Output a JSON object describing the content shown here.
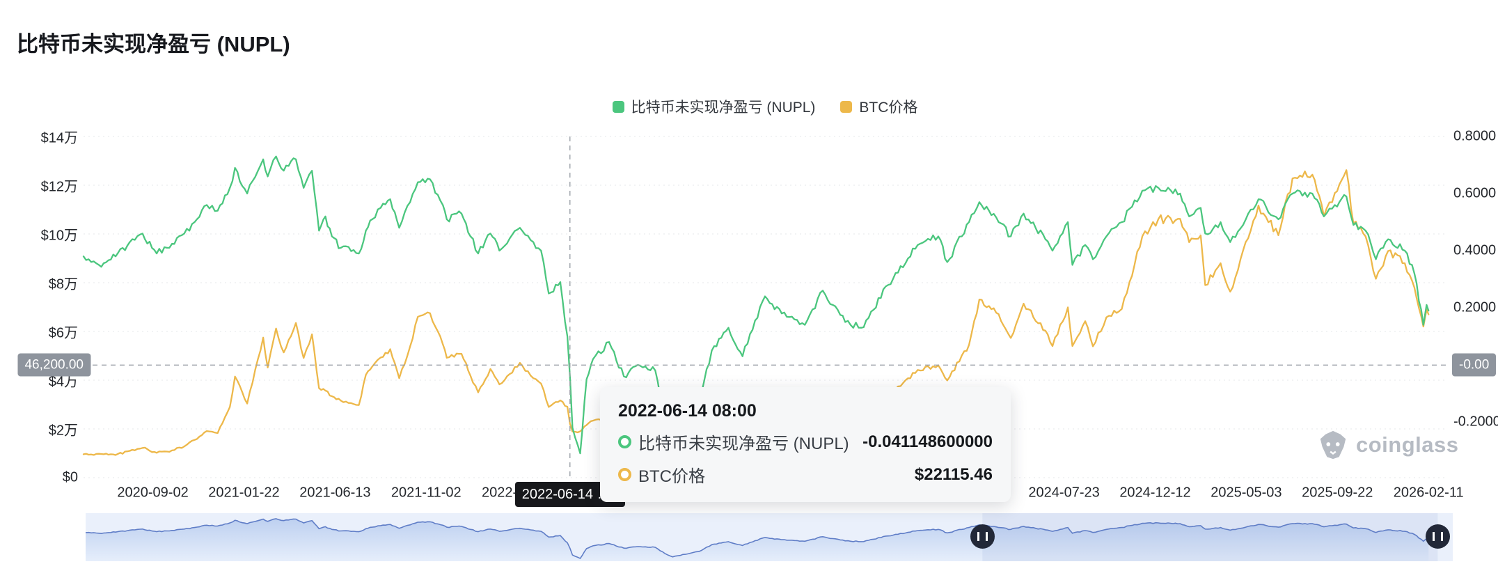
{
  "title": "比特币未实现净盈亏 (NUPL)",
  "legend": {
    "items": [
      {
        "label": "比特币未实现净盈亏 (NUPL)",
        "color": "#4bc67e"
      },
      {
        "label": "BTC价格",
        "color": "#edb84a"
      }
    ]
  },
  "watermark": {
    "text": "coinglass"
  },
  "crosshair": {
    "date": "2022-06-14",
    "left_label": "46,200.00",
    "left_value": 46200,
    "right_label": "-0.00",
    "date_label": "2022-06-14 08:00"
  },
  "tooltip": {
    "title": "2022-06-14 08:00",
    "rows": [
      {
        "label": "比特币未实现净盈亏 (NUPL)",
        "value": "-0.041148600000",
        "color": "#4bc67e"
      },
      {
        "label": "BTC价格",
        "value": "$22115.46",
        "color": "#edb84a"
      }
    ]
  },
  "chart_data": {
    "type": "line",
    "title": "比特币未实现净盈亏 (NUPL)",
    "legend_position": "top-center",
    "grid": "horizontal-dotted",
    "x_axis": {
      "min": "2020-05-17",
      "max": "2026-03-11",
      "ticks": [
        "2020-09-02",
        "2021-01-22",
        "2021-06-13",
        "2021-11-02",
        "2022-03-24",
        "2024-07-23",
        "2024-12-12",
        "2025-05-03",
        "2025-09-22",
        "2026-02-11"
      ]
    },
    "y_axis_left": {
      "min": 0,
      "max": 140000,
      "ticks": [
        {
          "value": 140000,
          "label": "$14万"
        },
        {
          "value": 120000,
          "label": "$12万"
        },
        {
          "value": 100000,
          "label": "$10万"
        },
        {
          "value": 80000,
          "label": "$8万"
        },
        {
          "value": 60000,
          "label": "$6万"
        },
        {
          "value": 40000,
          "label": "$4万"
        },
        {
          "value": 20000,
          "label": "$2万"
        },
        {
          "value": 0,
          "label": "$0"
        }
      ]
    },
    "y_axis_right": {
      "min": -0.3951,
      "max": 0.8,
      "ticks": [
        {
          "value": 0.8,
          "label": "0.8000"
        },
        {
          "value": 0.6,
          "label": "0.6000"
        },
        {
          "value": 0.4,
          "label": "0.4000"
        },
        {
          "value": 0.2,
          "label": "0.2000"
        },
        {
          "value": -0.2,
          "label": "-0.2000"
        }
      ]
    },
    "series": [
      {
        "name": "比特币未实现净盈亏 (NUPL)",
        "axis": "right",
        "color": "#4bc67e",
        "points": [
          [
            "2020-05-17",
            0.38
          ],
          [
            "2020-06-10",
            0.35
          ],
          [
            "2020-07-06",
            0.38
          ],
          [
            "2020-07-28",
            0.43
          ],
          [
            "2020-08-17",
            0.46
          ],
          [
            "2020-09-08",
            0.39
          ],
          [
            "2020-09-24",
            0.41
          ],
          [
            "2020-10-21",
            0.46
          ],
          [
            "2020-11-06",
            0.5
          ],
          [
            "2020-11-25",
            0.56
          ],
          [
            "2020-12-12",
            0.54
          ],
          [
            "2020-12-31",
            0.62
          ],
          [
            "2021-01-08",
            0.69
          ],
          [
            "2021-01-27",
            0.6
          ],
          [
            "2021-02-21",
            0.72
          ],
          [
            "2021-02-28",
            0.66
          ],
          [
            "2021-03-13",
            0.73
          ],
          [
            "2021-03-25",
            0.68
          ],
          [
            "2021-04-13",
            0.72
          ],
          [
            "2021-04-25",
            0.62
          ],
          [
            "2021-05-08",
            0.68
          ],
          [
            "2021-05-19",
            0.47
          ],
          [
            "2021-05-29",
            0.52
          ],
          [
            "2021-06-08",
            0.45
          ],
          [
            "2021-06-22",
            0.41
          ],
          [
            "2021-07-20",
            0.39
          ],
          [
            "2021-07-31",
            0.47
          ],
          [
            "2021-08-10",
            0.51
          ],
          [
            "2021-08-23",
            0.55
          ],
          [
            "2021-09-07",
            0.58
          ],
          [
            "2021-09-21",
            0.48
          ],
          [
            "2021-10-08",
            0.57
          ],
          [
            "2021-10-20",
            0.64
          ],
          [
            "2021-11-08",
            0.65
          ],
          [
            "2021-11-28",
            0.56
          ],
          [
            "2021-12-04",
            0.51
          ],
          [
            "2021-12-27",
            0.53
          ],
          [
            "2022-01-10",
            0.45
          ],
          [
            "2022-01-22",
            0.39
          ],
          [
            "2022-02-10",
            0.46
          ],
          [
            "2022-02-24",
            0.4
          ],
          [
            "2022-03-28",
            0.48
          ],
          [
            "2022-04-18",
            0.43
          ],
          [
            "2022-04-30",
            0.4
          ],
          [
            "2022-05-12",
            0.25
          ],
          [
            "2022-05-30",
            0.29
          ],
          [
            "2022-06-10",
            0.1
          ],
          [
            "2022-06-14",
            -0.0411486
          ],
          [
            "2022-06-18",
            -0.22
          ],
          [
            "2022-06-30",
            -0.31
          ],
          [
            "2022-07-10",
            -0.05
          ],
          [
            "2022-07-20",
            0.02
          ],
          [
            "2022-08-14",
            0.08
          ],
          [
            "2022-09-06",
            -0.04
          ],
          [
            "2022-09-28",
            0.0
          ],
          [
            "2022-10-25",
            -0.02
          ],
          [
            "2022-11-09",
            -0.18
          ],
          [
            "2022-11-21",
            -0.27
          ],
          [
            "2022-12-15",
            -0.19
          ],
          [
            "2023-01-01",
            -0.13
          ],
          [
            "2023-01-21",
            0.05
          ],
          [
            "2023-02-16",
            0.13
          ],
          [
            "2023-03-10",
            0.03
          ],
          [
            "2023-04-14",
            0.24
          ],
          [
            "2023-05-10",
            0.18
          ],
          [
            "2023-06-15",
            0.14
          ],
          [
            "2023-07-13",
            0.26
          ],
          [
            "2023-08-17",
            0.15
          ],
          [
            "2023-09-11",
            0.13
          ],
          [
            "2023-10-23",
            0.28
          ],
          [
            "2023-12-08",
            0.42
          ],
          [
            "2024-01-09",
            0.45
          ],
          [
            "2024-01-23",
            0.36
          ],
          [
            "2024-02-26",
            0.5
          ],
          [
            "2024-03-13",
            0.57
          ],
          [
            "2024-04-12",
            0.5
          ],
          [
            "2024-05-01",
            0.45
          ],
          [
            "2024-05-21",
            0.53
          ],
          [
            "2024-06-24",
            0.44
          ],
          [
            "2024-07-05",
            0.4
          ],
          [
            "2024-07-29",
            0.5
          ],
          [
            "2024-08-05",
            0.35
          ],
          [
            "2024-08-25",
            0.42
          ],
          [
            "2024-09-06",
            0.37
          ],
          [
            "2024-09-27",
            0.45
          ],
          [
            "2024-10-21",
            0.5
          ],
          [
            "2024-11-22",
            0.61
          ],
          [
            "2024-12-17",
            0.62
          ],
          [
            "2025-01-20",
            0.6
          ],
          [
            "2025-02-03",
            0.52
          ],
          [
            "2025-02-21",
            0.55
          ],
          [
            "2025-02-28",
            0.46
          ],
          [
            "2025-03-24",
            0.5
          ],
          [
            "2025-04-08",
            0.43
          ],
          [
            "2025-05-22",
            0.58
          ],
          [
            "2025-06-22",
            0.51
          ],
          [
            "2025-07-14",
            0.6
          ],
          [
            "2025-08-14",
            0.6
          ],
          [
            "2025-09-01",
            0.52
          ],
          [
            "2025-09-18",
            0.56
          ],
          [
            "2025-10-06",
            0.59
          ],
          [
            "2025-10-17",
            0.49
          ],
          [
            "2025-11-05",
            0.47
          ],
          [
            "2025-11-21",
            0.37
          ],
          [
            "2025-12-10",
            0.44
          ],
          [
            "2026-01-05",
            0.4
          ],
          [
            "2026-01-20",
            0.32
          ],
          [
            "2026-02-03",
            0.14
          ],
          [
            "2026-02-08",
            0.21
          ],
          [
            "2026-02-11",
            0.19
          ]
        ]
      },
      {
        "name": "BTC价格",
        "axis": "left",
        "color": "#edb84a",
        "points": [
          [
            "2020-05-17",
            9600
          ],
          [
            "2020-06-10",
            9800
          ],
          [
            "2020-07-06",
            9300
          ],
          [
            "2020-07-28",
            11000
          ],
          [
            "2020-08-17",
            12200
          ],
          [
            "2020-09-08",
            10200
          ],
          [
            "2020-09-24",
            10700
          ],
          [
            "2020-10-21",
            12800
          ],
          [
            "2020-11-06",
            15500
          ],
          [
            "2020-11-25",
            19100
          ],
          [
            "2020-12-12",
            18300
          ],
          [
            "2020-12-31",
            29000
          ],
          [
            "2021-01-08",
            41500
          ],
          [
            "2021-01-27",
            30400
          ],
          [
            "2021-02-21",
            57500
          ],
          [
            "2021-02-28",
            45200
          ],
          [
            "2021-03-13",
            61200
          ],
          [
            "2021-03-25",
            51400
          ],
          [
            "2021-04-13",
            63500
          ],
          [
            "2021-04-25",
            49100
          ],
          [
            "2021-05-08",
            58800
          ],
          [
            "2021-05-19",
            36700
          ],
          [
            "2021-05-29",
            35700
          ],
          [
            "2021-06-08",
            33400
          ],
          [
            "2021-06-22",
            31600
          ],
          [
            "2021-07-20",
            29800
          ],
          [
            "2021-07-31",
            42200
          ],
          [
            "2021-08-10",
            45600
          ],
          [
            "2021-08-23",
            49300
          ],
          [
            "2021-09-07",
            52700
          ],
          [
            "2021-09-21",
            40800
          ],
          [
            "2021-10-08",
            53900
          ],
          [
            "2021-10-20",
            66000
          ],
          [
            "2021-11-08",
            67500
          ],
          [
            "2021-11-28",
            54700
          ],
          [
            "2021-12-04",
            49200
          ],
          [
            "2021-12-27",
            50800
          ],
          [
            "2022-01-10",
            41800
          ],
          [
            "2022-01-22",
            35000
          ],
          [
            "2022-02-10",
            44600
          ],
          [
            "2022-02-24",
            38300
          ],
          [
            "2022-03-28",
            47100
          ],
          [
            "2022-04-18",
            40800
          ],
          [
            "2022-04-30",
            38600
          ],
          [
            "2022-05-12",
            29000
          ],
          [
            "2022-05-30",
            31700
          ],
          [
            "2022-06-10",
            29100
          ],
          [
            "2022-06-14",
            22115.46
          ],
          [
            "2022-06-18",
            18900
          ],
          [
            "2022-06-30",
            19000
          ],
          [
            "2022-07-10",
            21600
          ],
          [
            "2022-07-20",
            23400
          ],
          [
            "2022-08-14",
            24400
          ],
          [
            "2022-09-06",
            18800
          ],
          [
            "2022-09-28",
            19400
          ],
          [
            "2022-10-25",
            20100
          ],
          [
            "2022-11-09",
            15900
          ],
          [
            "2022-11-21",
            16200
          ],
          [
            "2022-12-15",
            17400
          ],
          [
            "2023-01-01",
            16600
          ],
          [
            "2023-01-21",
            22700
          ],
          [
            "2023-02-16",
            24600
          ],
          [
            "2023-03-10",
            20200
          ],
          [
            "2023-04-14",
            30500
          ],
          [
            "2023-05-10",
            27600
          ],
          [
            "2023-06-15",
            25100
          ],
          [
            "2023-07-13",
            31400
          ],
          [
            "2023-08-17",
            26600
          ],
          [
            "2023-09-11",
            25200
          ],
          [
            "2023-10-23",
            33100
          ],
          [
            "2023-12-08",
            44200
          ],
          [
            "2024-01-09",
            46100
          ],
          [
            "2024-01-23",
            39900
          ],
          [
            "2024-02-26",
            54500
          ],
          [
            "2024-03-13",
            73100
          ],
          [
            "2024-04-12",
            67100
          ],
          [
            "2024-05-01",
            57300
          ],
          [
            "2024-05-21",
            71400
          ],
          [
            "2024-06-24",
            60300
          ],
          [
            "2024-07-05",
            54000
          ],
          [
            "2024-07-29",
            69900
          ],
          [
            "2024-08-05",
            53990
          ],
          [
            "2024-08-25",
            64200
          ],
          [
            "2024-09-06",
            53900
          ],
          [
            "2024-09-27",
            65800
          ],
          [
            "2024-10-21",
            69200
          ],
          [
            "2024-11-22",
            99000
          ],
          [
            "2024-12-17",
            106100
          ],
          [
            "2025-01-20",
            106200
          ],
          [
            "2025-02-03",
            96600
          ],
          [
            "2025-02-21",
            99400
          ],
          [
            "2025-02-28",
            79000
          ],
          [
            "2025-03-24",
            88000
          ],
          [
            "2025-04-08",
            76300
          ],
          [
            "2025-05-22",
            111700
          ],
          [
            "2025-06-22",
            99500
          ],
          [
            "2025-07-14",
            122800
          ],
          [
            "2025-08-14",
            124300
          ],
          [
            "2025-09-01",
            107200
          ],
          [
            "2025-09-18",
            116800
          ],
          [
            "2025-10-06",
            126200
          ],
          [
            "2025-10-17",
            104500
          ],
          [
            "2025-11-05",
            99000
          ],
          [
            "2025-11-21",
            81600
          ],
          [
            "2025-12-10",
            93000
          ],
          [
            "2026-01-05",
            88000
          ],
          [
            "2026-01-20",
            78000
          ],
          [
            "2026-02-03",
            62000
          ],
          [
            "2026-02-08",
            69000
          ],
          [
            "2026-02-11",
            67000
          ]
        ]
      }
    ]
  }
}
